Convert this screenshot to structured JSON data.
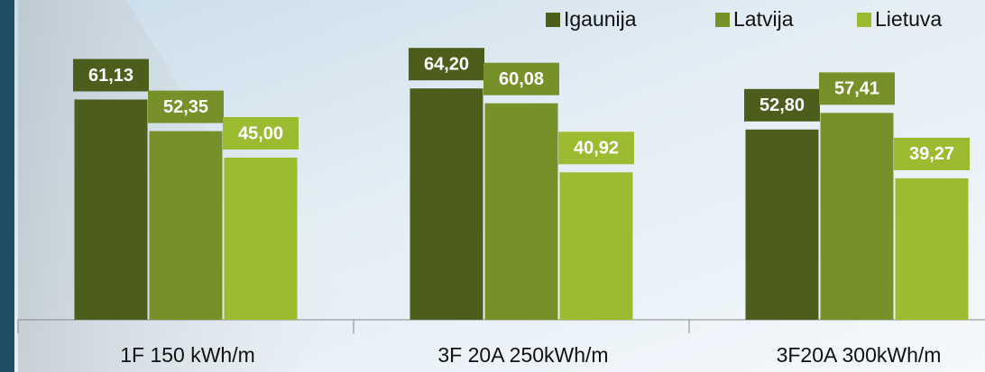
{
  "chart_data": {
    "type": "bar",
    "categories": [
      "1F 150 kWh/m",
      "3F 20A 250kWh/m",
      "3F20A 300kWh/m"
    ],
    "series": [
      {
        "name": "Igaunija",
        "color": "#4d5e1c",
        "values": [
          61.13,
          64.2,
          52.8
        ],
        "value_labels": [
          "61,13",
          "64,20",
          "52,80"
        ]
      },
      {
        "name": "Latvija",
        "color": "#76912a",
        "values": [
          52.35,
          60.08,
          57.41
        ],
        "value_labels": [
          "52,35",
          "60,08",
          "57,41"
        ]
      },
      {
        "name": "Lietuva",
        "color": "#9bbb30",
        "values": [
          45.0,
          40.92,
          39.27
        ],
        "value_labels": [
          "45,00",
          "40,92",
          "39,27"
        ]
      }
    ],
    "legend": "top-right"
  }
}
